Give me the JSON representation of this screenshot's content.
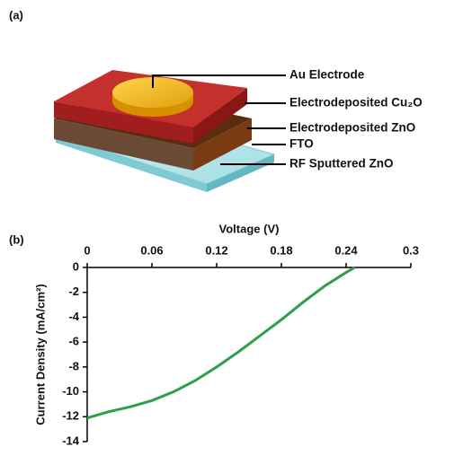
{
  "diagram": {
    "label": "(a)",
    "layers": [
      "Au Electrode",
      "Electrodeposited Cu₂O",
      "Electrodeposited ZnO",
      "FTO",
      "RF Sputtered ZnO"
    ]
  },
  "chart_data": {
    "type": "line",
    "panel_label": "(b)",
    "xlabel": "Voltage (V)",
    "ylabel": "Current Density (mA/cm²)",
    "x": [
      0,
      0.02,
      0.04,
      0.06,
      0.08,
      0.1,
      0.12,
      0.14,
      0.16,
      0.18,
      0.2,
      0.22,
      0.24,
      0.248
    ],
    "series": [
      {
        "color": "#2e9e4a",
        "values": [
          -12.1,
          -11.6,
          -11.2,
          -10.7,
          -10.0,
          -9.1,
          -8.0,
          -6.8,
          -5.5,
          -4.2,
          -2.8,
          -1.5,
          -0.4,
          0
        ]
      }
    ],
    "xlim": [
      0,
      0.3
    ],
    "xticks": [
      0,
      0.06,
      0.12,
      0.18,
      0.24,
      0.3
    ],
    "ylim": [
      -14,
      0
    ],
    "yticks": [
      0,
      -2,
      -4,
      -6,
      -8,
      -10,
      -12,
      -14
    ]
  }
}
